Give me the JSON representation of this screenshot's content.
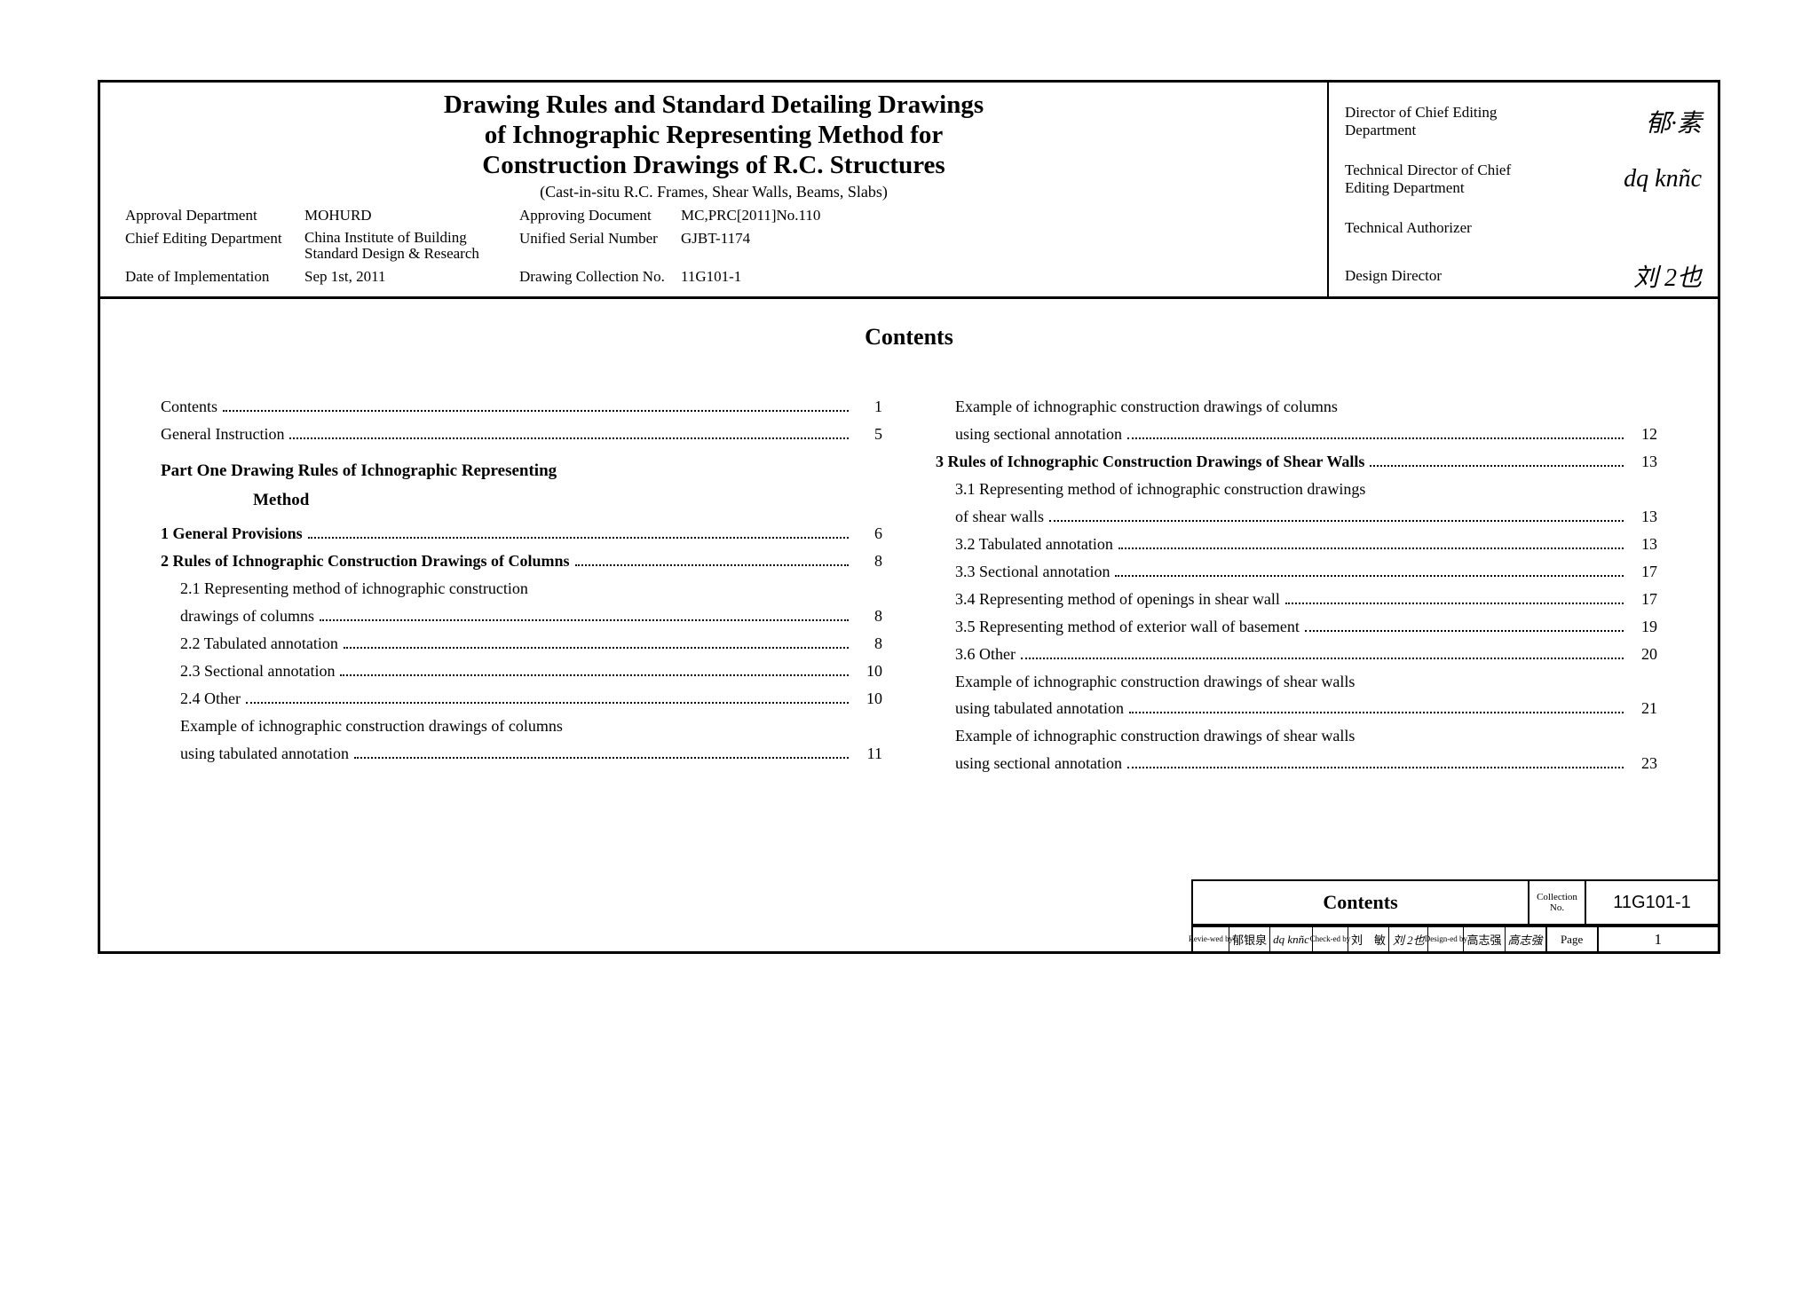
{
  "title": {
    "line1": "Drawing Rules and Standard Detailing Drawings",
    "line2": "of Ichnographic Representing Method for",
    "line3": "Construction Drawings of R.C. Structures",
    "sub": "(Cast-in-situ R.C. Frames, Shear Walls, Beams, Slabs)"
  },
  "meta": {
    "approvalDeptLabel": "Approval Department",
    "approvalDept": "MOHURD",
    "chiefEditLabel": "Chief Editing Department",
    "chiefEdit": "China Institute of Building Standard Design & Research",
    "dateImplLabel": "Date of Implementation",
    "dateImpl": "Sep 1st, 2011",
    "approvingDocLabel": "Approving Document",
    "approvingDoc": "MC,PRC[2011]No.110",
    "unifiedLabel": "Unified Serial Number",
    "unified": "GJBT-1174",
    "collNoLabel": "Drawing Collection No.",
    "collNo": "11G101-1"
  },
  "directors": {
    "r1": "Director of Chief Editing Department",
    "r2": "Technical Director of Chief Editing Department",
    "r3": "Technical Authorizer",
    "r4": "Design Director",
    "s1": "郁·素",
    "s2": "dq knñc",
    "s3": "刘 2也"
  },
  "contentsTitle": "Contents",
  "partOne": {
    "l1": "Part One   Drawing Rules of Ichnographic Representing",
    "l2": "Method"
  },
  "left": [
    {
      "text": "Contents",
      "page": "1",
      "bold": false,
      "indent": false
    },
    {
      "text": "General Instruction",
      "page": "5",
      "bold": false,
      "indent": false
    },
    {
      "text": "1 General Provisions",
      "page": "6",
      "bold": true,
      "indent": false
    },
    {
      "text": "2 Rules of Ichnographic Construction Drawings of Columns",
      "page": "8",
      "bold": true,
      "indent": false
    },
    {
      "text": "2.1 Representing method of ichnographic construction",
      "page": "",
      "bold": false,
      "indent": true,
      "noDots": true
    },
    {
      "text": "drawings of columns",
      "page": "8",
      "bold": false,
      "indent": true
    },
    {
      "text": "2.2 Tabulated annotation",
      "page": "8",
      "bold": false,
      "indent": true
    },
    {
      "text": "2.3 Sectional annotation",
      "page": "10",
      "bold": false,
      "indent": true
    },
    {
      "text": "2.4 Other",
      "page": "10",
      "bold": false,
      "indent": true
    },
    {
      "text": "Example of ichnographic construction drawings of columns",
      "page": "",
      "bold": false,
      "indent": true,
      "noDots": true
    },
    {
      "text": "using tabulated annotation",
      "page": "11",
      "bold": false,
      "indent": true
    }
  ],
  "right": [
    {
      "text": "Example of ichnographic construction drawings of columns",
      "page": "",
      "bold": false,
      "indent": true,
      "noDots": true
    },
    {
      "text": "using sectional annotation",
      "page": "12",
      "bold": false,
      "indent": true
    },
    {
      "text": "3 Rules of Ichnographic Construction Drawings of Shear Walls",
      "page": "13",
      "bold": true,
      "indent": false
    },
    {
      "text": "3.1 Representing method of ichnographic construction drawings",
      "page": "",
      "bold": false,
      "indent": true,
      "noDots": true
    },
    {
      "text": "of shear walls",
      "page": "13",
      "bold": false,
      "indent": true
    },
    {
      "text": "3.2 Tabulated annotation",
      "page": "13",
      "bold": false,
      "indent": true
    },
    {
      "text": "3.3 Sectional annotation",
      "page": "17",
      "bold": false,
      "indent": true
    },
    {
      "text": "3.4 Representing method of openings in shear wall",
      "page": "17",
      "bold": false,
      "indent": true
    },
    {
      "text": "3.5 Representing method of exterior wall of basement",
      "page": "19",
      "bold": false,
      "indent": true
    },
    {
      "text": "3.6 Other",
      "page": "20",
      "bold": false,
      "indent": true
    },
    {
      "text": "Example of ichnographic construction drawings of shear walls",
      "page": "",
      "bold": false,
      "indent": true,
      "noDots": true
    },
    {
      "text": "using tabulated annotation",
      "page": "21",
      "bold": false,
      "indent": true
    },
    {
      "text": "Example of ichnographic construction drawings of shear walls",
      "page": "",
      "bold": false,
      "indent": true,
      "noDots": true
    },
    {
      "text": "using sectional annotation",
      "page": "23",
      "bold": false,
      "indent": true
    }
  ],
  "strip": {
    "main": "Contents",
    "collLabel": "Collection No.",
    "collNo": "11G101-1"
  },
  "bottom": {
    "revLabel": "Revie-wed by",
    "revName": "郁银泉",
    "revSig": "dq knñc",
    "chkLabel": "Check-ed by",
    "chkName": "刘　敏",
    "chkSig": "刘 2也",
    "desLabel": "Design-ed by",
    "desName": "高志强",
    "desSig": "高志強",
    "pageLabel": "Page",
    "pageVal": "1"
  }
}
